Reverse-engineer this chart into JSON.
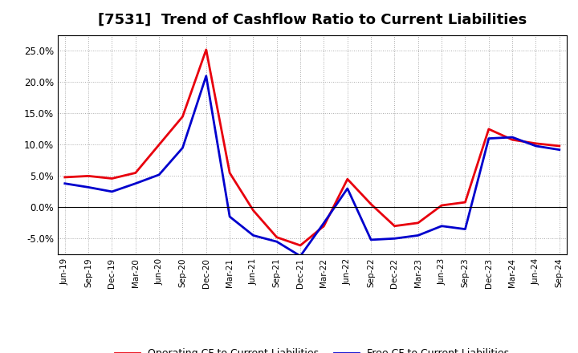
{
  "title": "[7531]  Trend of Cashflow Ratio to Current Liabilities",
  "x_labels": [
    "Jun-19",
    "Sep-19",
    "Dec-19",
    "Mar-20",
    "Jun-20",
    "Sep-20",
    "Dec-20",
    "Mar-21",
    "Jun-21",
    "Sep-21",
    "Dec-21",
    "Mar-22",
    "Jun-22",
    "Sep-22",
    "Dec-22",
    "Mar-23",
    "Jun-23",
    "Sep-23",
    "Dec-23",
    "Mar-24",
    "Jun-24",
    "Sep-24"
  ],
  "operating_cf": [
    4.8,
    5.0,
    4.6,
    5.5,
    10.0,
    14.5,
    25.2,
    5.5,
    -0.5,
    -4.8,
    -6.1,
    -3.0,
    4.5,
    0.5,
    -3.0,
    -2.5,
    0.3,
    0.8,
    12.5,
    10.8,
    10.2,
    9.8
  ],
  "free_cf": [
    3.8,
    3.2,
    2.5,
    3.8,
    5.2,
    9.5,
    21.0,
    -1.5,
    -4.5,
    -5.5,
    -7.8,
    -2.5,
    3.0,
    -5.2,
    -5.0,
    -4.5,
    -3.0,
    -3.5,
    11.0,
    11.2,
    9.8,
    9.2
  ],
  "operating_cf_color": "#e8000d",
  "free_cf_color": "#0000cd",
  "ylim": [
    -7.5,
    27.5
  ],
  "yticks": [
    -5.0,
    0.0,
    5.0,
    10.0,
    15.0,
    20.0,
    25.0
  ],
  "background_color": "#ffffff",
  "plot_bg_color": "#ffffff",
  "grid_color": "#aaaaaa",
  "legend_label_operating": "Operating CF to Current Liabilities",
  "legend_label_free": "Free CF to Current Liabilities",
  "title_fontsize": 13,
  "line_width": 2.0
}
